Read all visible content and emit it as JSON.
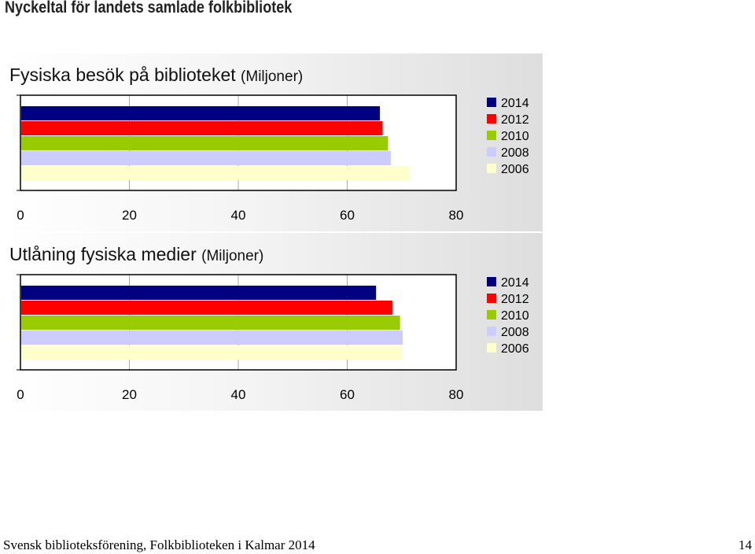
{
  "page": {
    "title": "Nyckeltal för landets samlade folkbibliotek",
    "footer": "Svensk biblioteksförening, Folkbiblioteken i Kalmar 2014",
    "page_number": "14"
  },
  "chart_data": [
    {
      "type": "bar",
      "orientation": "horizontal",
      "title": "Fysiska besök på biblioteket",
      "title_unit": "(Miljoner)",
      "xlim": [
        0,
        80
      ],
      "xticks": [
        "0",
        "20",
        "40",
        "60",
        "80"
      ],
      "grid": true,
      "legend_position": "right",
      "series": [
        {
          "name": "2014",
          "value": 66,
          "color": "#000080"
        },
        {
          "name": "2012",
          "value": 66.5,
          "color": "#ff0000"
        },
        {
          "name": "2010",
          "value": 67.5,
          "color": "#99cc00"
        },
        {
          "name": "2008",
          "value": 68,
          "color": "#ccccff"
        },
        {
          "name": "2006",
          "value": 71.5,
          "color": "#ffffcc"
        }
      ]
    },
    {
      "type": "bar",
      "orientation": "horizontal",
      "title": "Utlåning fysiska medier",
      "title_unit": "(Miljoner)",
      "xlim": [
        0,
        80
      ],
      "xticks": [
        "0",
        "20",
        "40",
        "60",
        "80"
      ],
      "grid": true,
      "legend_position": "right",
      "series": [
        {
          "name": "2014",
          "value": 65.3,
          "color": "#000080"
        },
        {
          "name": "2012",
          "value": 68.3,
          "color": "#ff0000"
        },
        {
          "name": "2010",
          "value": 69.7,
          "color": "#99cc00"
        },
        {
          "name": "2008",
          "value": 70.2,
          "color": "#ccccff"
        },
        {
          "name": "2006",
          "value": 70.2,
          "color": "#ffffcc"
        }
      ]
    }
  ]
}
